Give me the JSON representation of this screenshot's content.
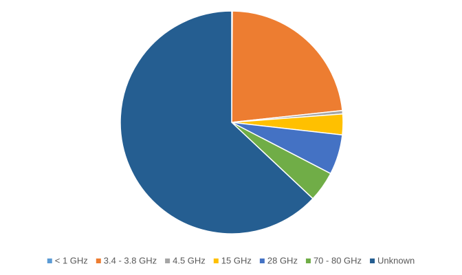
{
  "chart_data": {
    "type": "pie",
    "categories": [
      "< 1 GHz",
      "3.4 - 3.8 GHz",
      "4.5 GHz",
      "15 GHz",
      "28 GHz",
      "70 - 80 GHz",
      "Unknown"
    ],
    "values": [
      0.1,
      23.2,
      0.5,
      3,
      5.8,
      4.4,
      63
    ],
    "colors": [
      "#5b9bd5",
      "#ed7d31",
      "#a5a5a5",
      "#ffc000",
      "#4472c4",
      "#70ad47",
      "#255e91"
    ],
    "legend": "bottom"
  }
}
